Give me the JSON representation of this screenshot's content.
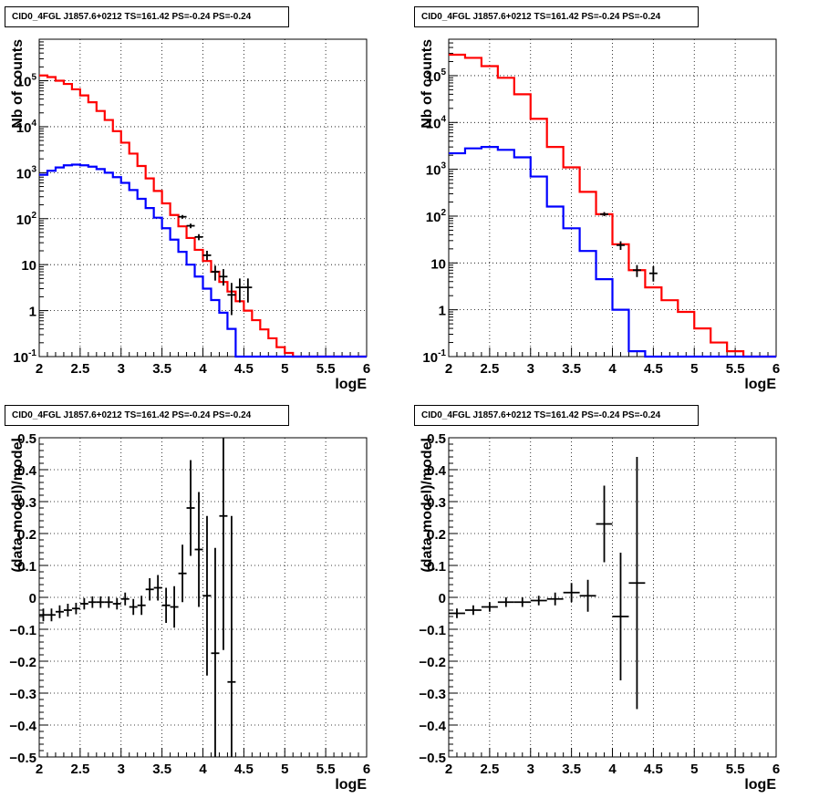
{
  "chart_data": [
    {
      "type": "line",
      "title": "CID0_4FGL J1857.6+0212 TS=161.42 PS=-0.24 PS=-0.24",
      "xlabel": "logE",
      "ylabel": "Nb of counts",
      "xlim": [
        2,
        6
      ],
      "ylim": [
        0.1,
        800000
      ],
      "yscale": "log",
      "xticks": [
        "2",
        "2.5",
        "3",
        "3.5",
        "4",
        "4.5",
        "5",
        "5.5",
        "6"
      ],
      "yticks": [
        "10^-1",
        "1",
        "10",
        "10^2",
        "10^3",
        "10^4",
        "10^5"
      ],
      "grid": true,
      "bin_edges": [
        2.0,
        2.1,
        2.2,
        2.3,
        2.4,
        2.5,
        2.6,
        2.7,
        2.8,
        2.9,
        3.0,
        3.1,
        3.2,
        3.3,
        3.4,
        3.5,
        3.6,
        3.7,
        3.8,
        3.9,
        4.0,
        4.1,
        4.2,
        4.3,
        4.4,
        4.5,
        4.6,
        4.7,
        4.8,
        4.9,
        5.0,
        5.1,
        5.2,
        5.3,
        5.4,
        5.5,
        5.6,
        5.7,
        5.8,
        5.9,
        6.0
      ],
      "series": [
        {
          "color": "#ff0000",
          "values": [
            130000,
            120000,
            100000,
            85000,
            65000,
            48000,
            34000,
            22000,
            14000,
            8000,
            4500,
            2600,
            1400,
            750,
            400,
            215,
            120,
            68,
            38,
            21,
            12,
            7,
            4.2,
            2.6,
            1.6,
            1.0,
            0.62,
            0.39,
            0.25,
            0.16,
            0.12,
            0.1,
            0.1,
            0.1,
            0.1,
            0.1,
            0.1,
            0.1,
            0.1,
            0.1
          ]
        },
        {
          "color": "#0000ff",
          "values": [
            900,
            1100,
            1300,
            1450,
            1500,
            1450,
            1350,
            1200,
            1000,
            800,
            600,
            420,
            270,
            170,
            105,
            62,
            35,
            19,
            10,
            5.5,
            3,
            1.7,
            0.9,
            0.4,
            0.1,
            0.1,
            0.1,
            0.1,
            0.1,
            0.1,
            0.1,
            0.1,
            0.1,
            0.1,
            0.1,
            0.1,
            0.1,
            0.1,
            0.1,
            0.1
          ]
        }
      ],
      "points": [
        {
          "x": 3.75,
          "y": 110,
          "ylo": 100,
          "yhi": 120
        },
        {
          "x": 3.85,
          "y": 70,
          "ylo": 62,
          "yhi": 78
        },
        {
          "x": 3.95,
          "y": 40,
          "ylo": 34,
          "yhi": 46
        },
        {
          "x": 4.05,
          "y": 16,
          "ylo": 12.5,
          "yhi": 20
        },
        {
          "x": 4.15,
          "y": 7,
          "ylo": 4.5,
          "yhi": 9.5
        },
        {
          "x": 4.25,
          "y": 5.5,
          "ylo": 3.5,
          "yhi": 8
        },
        {
          "x": 4.35,
          "y": 2.2,
          "ylo": 0.8,
          "yhi": 4
        },
        {
          "x": 4.45,
          "y": 3.2,
          "ylo": 1.5,
          "yhi": 5
        },
        {
          "x": 4.55,
          "y": 3.2,
          "ylo": 1.5,
          "yhi": 5
        }
      ]
    },
    {
      "type": "line",
      "title": "CID0_4FGL J1857.6+0212 TS=161.42 PS=-0.24 PS=-0.24",
      "xlabel": "logE",
      "ylabel": "Nb of counts",
      "xlim": [
        2,
        6
      ],
      "ylim": [
        0.1,
        600000
      ],
      "yscale": "log",
      "xticks": [
        "2",
        "2.5",
        "3",
        "3.5",
        "4",
        "4.5",
        "5",
        "5.5",
        "6"
      ],
      "yticks": [
        "10^-1",
        "1",
        "10",
        "10^2",
        "10^3",
        "10^4",
        "10^5"
      ],
      "grid": true,
      "bin_edges": [
        2.0,
        2.2,
        2.4,
        2.6,
        2.8,
        3.0,
        3.2,
        3.4,
        3.6,
        3.8,
        4.0,
        4.2,
        4.4,
        4.6,
        4.8,
        5.0,
        5.2,
        5.4,
        5.6,
        5.8,
        6.0
      ],
      "series": [
        {
          "color": "#ff0000",
          "values": [
            280000,
            240000,
            160000,
            90000,
            40000,
            12000,
            3000,
            1100,
            330,
            110,
            25,
            7,
            3,
            1.6,
            0.9,
            0.4,
            0.2,
            0.13,
            0.1,
            0.1
          ]
        },
        {
          "color": "#0000ff",
          "values": [
            2200,
            2800,
            3000,
            2600,
            1800,
            700,
            160,
            55,
            18,
            4.5,
            1,
            0.13,
            0.1,
            0.1,
            0.1,
            0.1,
            0.1,
            0.1,
            0.1,
            0.1
          ]
        }
      ],
      "points": [
        {
          "x": 3.9,
          "y": 110,
          "ylo": 100,
          "yhi": 122
        },
        {
          "x": 4.1,
          "y": 24,
          "ylo": 19,
          "yhi": 29
        },
        {
          "x": 4.3,
          "y": 7,
          "ylo": 5,
          "yhi": 9
        },
        {
          "x": 4.5,
          "y": 6,
          "ylo": 4,
          "yhi": 8.5
        }
      ]
    },
    {
      "type": "scatter",
      "title": "CID0_4FGL J1857.6+0212 TS=161.42 PS=-0.24 PS=-0.24",
      "xlabel": "logE",
      "ylabel": "(data-model)/model",
      "xlim": [
        2,
        6
      ],
      "ylim": [
        -0.5,
        0.5
      ],
      "xticks": [
        "2",
        "2.5",
        "3",
        "3.5",
        "4",
        "4.5",
        "5",
        "5.5",
        "6"
      ],
      "yticks": [
        "−0.5",
        "−0.4",
        "−0.3",
        "−0.2",
        "−0.1",
        "0",
        "0.1",
        "0.2",
        "0.3",
        "0.4",
        "0.5"
      ],
      "grid": true,
      "xerr": 0.05,
      "points": [
        {
          "x": 2.05,
          "y": -0.055,
          "err": 0.02
        },
        {
          "x": 2.15,
          "y": -0.055,
          "err": 0.02
        },
        {
          "x": 2.25,
          "y": -0.045,
          "err": 0.02
        },
        {
          "x": 2.35,
          "y": -0.04,
          "err": 0.02
        },
        {
          "x": 2.45,
          "y": -0.035,
          "err": 0.018
        },
        {
          "x": 2.55,
          "y": -0.02,
          "err": 0.018
        },
        {
          "x": 2.65,
          "y": -0.015,
          "err": 0.018
        },
        {
          "x": 2.75,
          "y": -0.015,
          "err": 0.018
        },
        {
          "x": 2.85,
          "y": -0.015,
          "err": 0.018
        },
        {
          "x": 2.95,
          "y": -0.02,
          "err": 0.018
        },
        {
          "x": 3.05,
          "y": -0.005,
          "err": 0.02
        },
        {
          "x": 3.15,
          "y": -0.03,
          "err": 0.025
        },
        {
          "x": 3.25,
          "y": -0.025,
          "err": 0.03
        },
        {
          "x": 3.35,
          "y": 0.025,
          "err": 0.035
        },
        {
          "x": 3.45,
          "y": 0.03,
          "err": 0.04
        },
        {
          "x": 3.55,
          "y": -0.025,
          "err": 0.055
        },
        {
          "x": 3.65,
          "y": -0.03,
          "err": 0.065
        },
        {
          "x": 3.75,
          "y": 0.075,
          "err": 0.09
        },
        {
          "x": 3.85,
          "y": 0.28,
          "err": 0.15
        },
        {
          "x": 3.95,
          "y": 0.15,
          "err": 0.18
        },
        {
          "x": 4.05,
          "y": 0.005,
          "err": 0.25
        },
        {
          "x": 4.15,
          "y": -0.175,
          "err": 0.33
        },
        {
          "x": 4.25,
          "y": 0.255,
          "err": 0.42
        },
        {
          "x": 4.35,
          "y": -0.265,
          "err": 0.52
        }
      ]
    },
    {
      "type": "scatter",
      "title": "CID0_4FGL J1857.6+0212 TS=161.42 PS=-0.24 PS=-0.24",
      "xlabel": "logE",
      "ylabel": "(data-model)/model",
      "xlim": [
        2,
        6
      ],
      "ylim": [
        -0.5,
        0.5
      ],
      "xticks": [
        "2",
        "2.5",
        "3",
        "3.5",
        "4",
        "4.5",
        "5",
        "5.5",
        "6"
      ],
      "yticks": [
        "−0.5",
        "−0.4",
        "−0.3",
        "−0.2",
        "−0.1",
        "0",
        "0.1",
        "0.2",
        "0.3",
        "0.4",
        "0.5"
      ],
      "grid": true,
      "xerr": 0.1,
      "points": [
        {
          "x": 2.1,
          "y": -0.05,
          "err": 0.015
        },
        {
          "x": 2.3,
          "y": -0.04,
          "err": 0.015
        },
        {
          "x": 2.5,
          "y": -0.03,
          "err": 0.015
        },
        {
          "x": 2.7,
          "y": -0.015,
          "err": 0.015
        },
        {
          "x": 2.9,
          "y": -0.015,
          "err": 0.015
        },
        {
          "x": 3.1,
          "y": -0.01,
          "err": 0.015
        },
        {
          "x": 3.3,
          "y": -0.005,
          "err": 0.02
        },
        {
          "x": 3.5,
          "y": 0.015,
          "err": 0.03
        },
        {
          "x": 3.7,
          "y": 0.005,
          "err": 0.05
        },
        {
          "x": 3.9,
          "y": 0.23,
          "err": 0.12
        },
        {
          "x": 4.1,
          "y": -0.06,
          "err": 0.2
        },
        {
          "x": 4.3,
          "y": 0.045,
          "err": 0.395
        }
      ]
    }
  ]
}
